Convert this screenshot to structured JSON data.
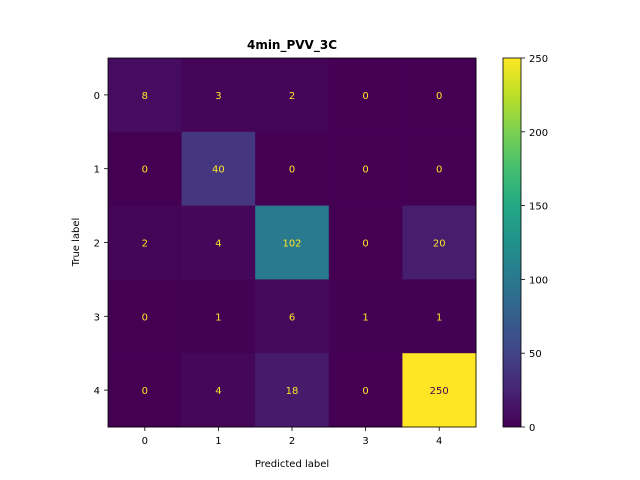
{
  "chart_data": {
    "type": "heatmap",
    "title": "4min_PVV_3C",
    "xlabel": "Predicted label",
    "ylabel": "True label",
    "x_categories": [
      "0",
      "1",
      "2",
      "3",
      "4"
    ],
    "y_categories": [
      "0",
      "1",
      "2",
      "3",
      "4"
    ],
    "matrix": [
      [
        8,
        3,
        2,
        0,
        0
      ],
      [
        0,
        40,
        0,
        0,
        0
      ],
      [
        2,
        4,
        102,
        0,
        20
      ],
      [
        0,
        1,
        6,
        1,
        1
      ],
      [
        0,
        4,
        18,
        0,
        250
      ]
    ],
    "colormap": "viridis",
    "color_range": [
      0,
      250
    ],
    "colorbar_ticks": [
      "0",
      "50",
      "100",
      "150",
      "200",
      "250"
    ],
    "text_color_light_cells": "#440154",
    "text_color_dark_cells": "#fde725"
  }
}
